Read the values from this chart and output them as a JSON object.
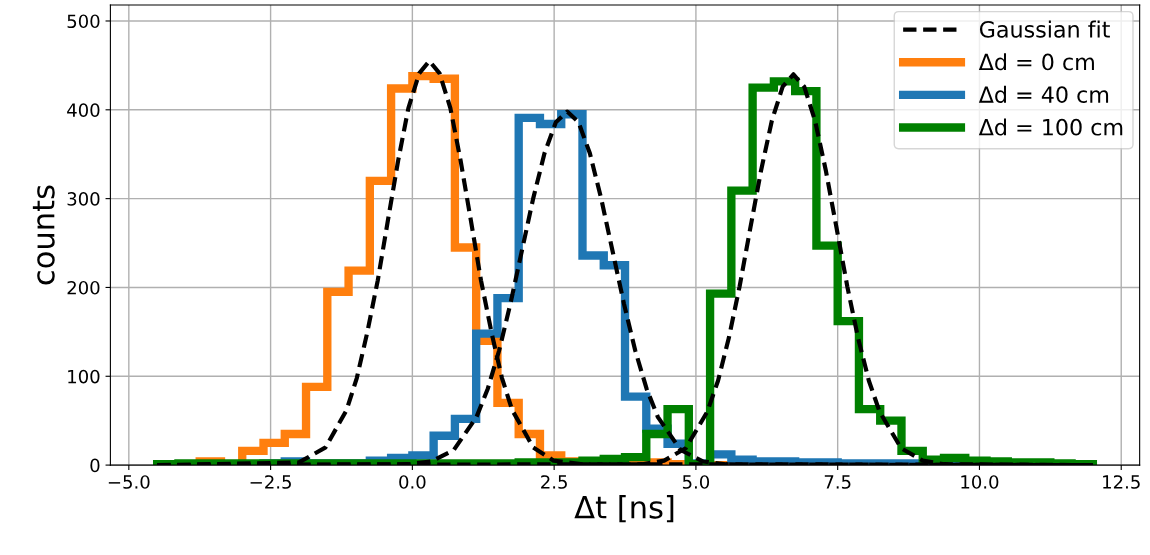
{
  "chart_data": {
    "type": "histogram",
    "xlabel": "Δt [ns]",
    "ylabel": "counts",
    "bins": [
      -4.5,
      -4.125,
      -3.75,
      -3.375,
      -3.0,
      -2.625,
      -2.25,
      -1.875,
      -1.5,
      -1.125,
      -0.75,
      -0.375,
      0,
      0.375,
      0.75,
      1.125,
      1.5,
      1.875,
      2.25,
      2.625,
      3.0,
      3.375,
      3.75,
      4.125,
      4.5,
      4.875,
      5.25,
      5.625,
      6.0,
      6.375,
      6.75,
      7.125,
      7.5,
      7.875,
      8.25,
      8.625,
      9.0,
      9.375,
      9.75,
      10.125,
      10.5,
      10.875,
      11.25,
      11.625,
      12.0
    ],
    "series": [
      {
        "name": "Gaussian fit",
        "type": "line",
        "line_style": "dashed",
        "color": "#000000",
        "x": [
          -4.5,
          -2.0,
          -1.53,
          -1.16,
          -0.98,
          -0.8,
          -0.61,
          -0.43,
          -0.25,
          -0.07,
          0.12,
          0.3,
          0.48,
          0.67,
          0.85,
          1.03,
          1.21,
          1.4,
          1.58,
          1.76,
          2.13,
          2.49,
          3.0,
          12.0
        ],
        "values": [
          0,
          3,
          20,
          62,
          98,
          148,
          208,
          276,
          343,
          402,
          441,
          455,
          441,
          402,
          343,
          276,
          208,
          148,
          98,
          62,
          20,
          5,
          1,
          0
        ]
      },
      {
        "type": "line",
        "line_style": "dashed",
        "color": "#000000",
        "x": [
          -4.5,
          -0.07,
          0.33,
          0.73,
          1.13,
          1.33,
          1.53,
          1.73,
          1.93,
          2.13,
          2.33,
          2.53,
          2.73,
          2.93,
          3.13,
          3.33,
          3.53,
          3.73,
          3.93,
          4.13,
          4.33,
          4.73,
          5.13,
          5.53,
          12.0
        ],
        "values": [
          0,
          1,
          4,
          17,
          54,
          86,
          129,
          182,
          241,
          300,
          351,
          386,
          398,
          386,
          351,
          300,
          241,
          182,
          129,
          86,
          54,
          17,
          4,
          1,
          0
        ]
      },
      {
        "type": "line",
        "line_style": "dashed",
        "color": "#000000",
        "x": [
          -4.5,
          4.06,
          4.44,
          4.82,
          5.2,
          5.39,
          5.58,
          5.77,
          5.96,
          6.15,
          6.34,
          6.53,
          6.72,
          6.91,
          7.1,
          7.29,
          7.48,
          7.67,
          7.86,
          8.05,
          8.24,
          8.62,
          9.0,
          9.38,
          12.0
        ],
        "values": [
          0,
          1,
          5,
          19,
          60,
          95,
          143,
          201,
          267,
          332,
          388,
          426,
          440,
          426,
          388,
          332,
          267,
          201,
          143,
          95,
          60,
          19,
          5,
          1,
          0
        ]
      },
      {
        "name": "Δd = 0 cm",
        "color": "#ff7f0e",
        "values": [
          0,
          1,
          4,
          1,
          16,
          25,
          35,
          88,
          195,
          219,
          320,
          424,
          438,
          435,
          245,
          140,
          70,
          35,
          11,
          4,
          2,
          2,
          1,
          3,
          1,
          0,
          0,
          0,
          0,
          0,
          0,
          0,
          0,
          0,
          0,
          0,
          0,
          0,
          0,
          0,
          0,
          0,
          0,
          0
        ]
      },
      {
        "name": "Δd = 40 cm",
        "color": "#1f77b4",
        "values": [
          1,
          1,
          1,
          1,
          1,
          2,
          4,
          2,
          2,
          2,
          5,
          8,
          11,
          33,
          52,
          148,
          188,
          391,
          384,
          395,
          236,
          225,
          77,
          41,
          24,
          2,
          12,
          6,
          4,
          4,
          3,
          3,
          2,
          2,
          2,
          2,
          2,
          1,
          1,
          1,
          1,
          1,
          1,
          1
        ]
      },
      {
        "name": "Δd = 100 cm",
        "color": "#008000",
        "values": [
          1,
          2,
          2,
          2,
          2,
          2,
          2,
          2,
          2,
          2,
          2,
          2,
          2,
          2,
          2,
          2,
          2,
          3,
          3,
          3,
          5,
          7,
          9,
          35,
          63,
          1,
          193,
          309,
          425,
          432,
          421,
          247,
          162,
          63,
          50,
          16,
          6,
          8,
          5,
          4,
          3,
          3,
          2,
          1
        ]
      }
    ],
    "xlim": [
      -5.325,
      12.825
    ],
    "xticks": [
      {
        "value": -5,
        "label": "−5.0"
      },
      {
        "value": -2.5,
        "label": "−2.5"
      },
      {
        "value": 0,
        "label": "0.0"
      },
      {
        "value": 2.5,
        "label": "2.5"
      },
      {
        "value": 5,
        "label": "5.0"
      },
      {
        "value": 7.5,
        "label": "7.5"
      },
      {
        "value": 10,
        "label": "10.0"
      },
      {
        "value": 12.5,
        "label": "12.5"
      }
    ],
    "ylim": [
      0,
      518
    ],
    "yticks": [
      0,
      100,
      200,
      300,
      400,
      500
    ],
    "grid": true,
    "legend": "top right"
  }
}
